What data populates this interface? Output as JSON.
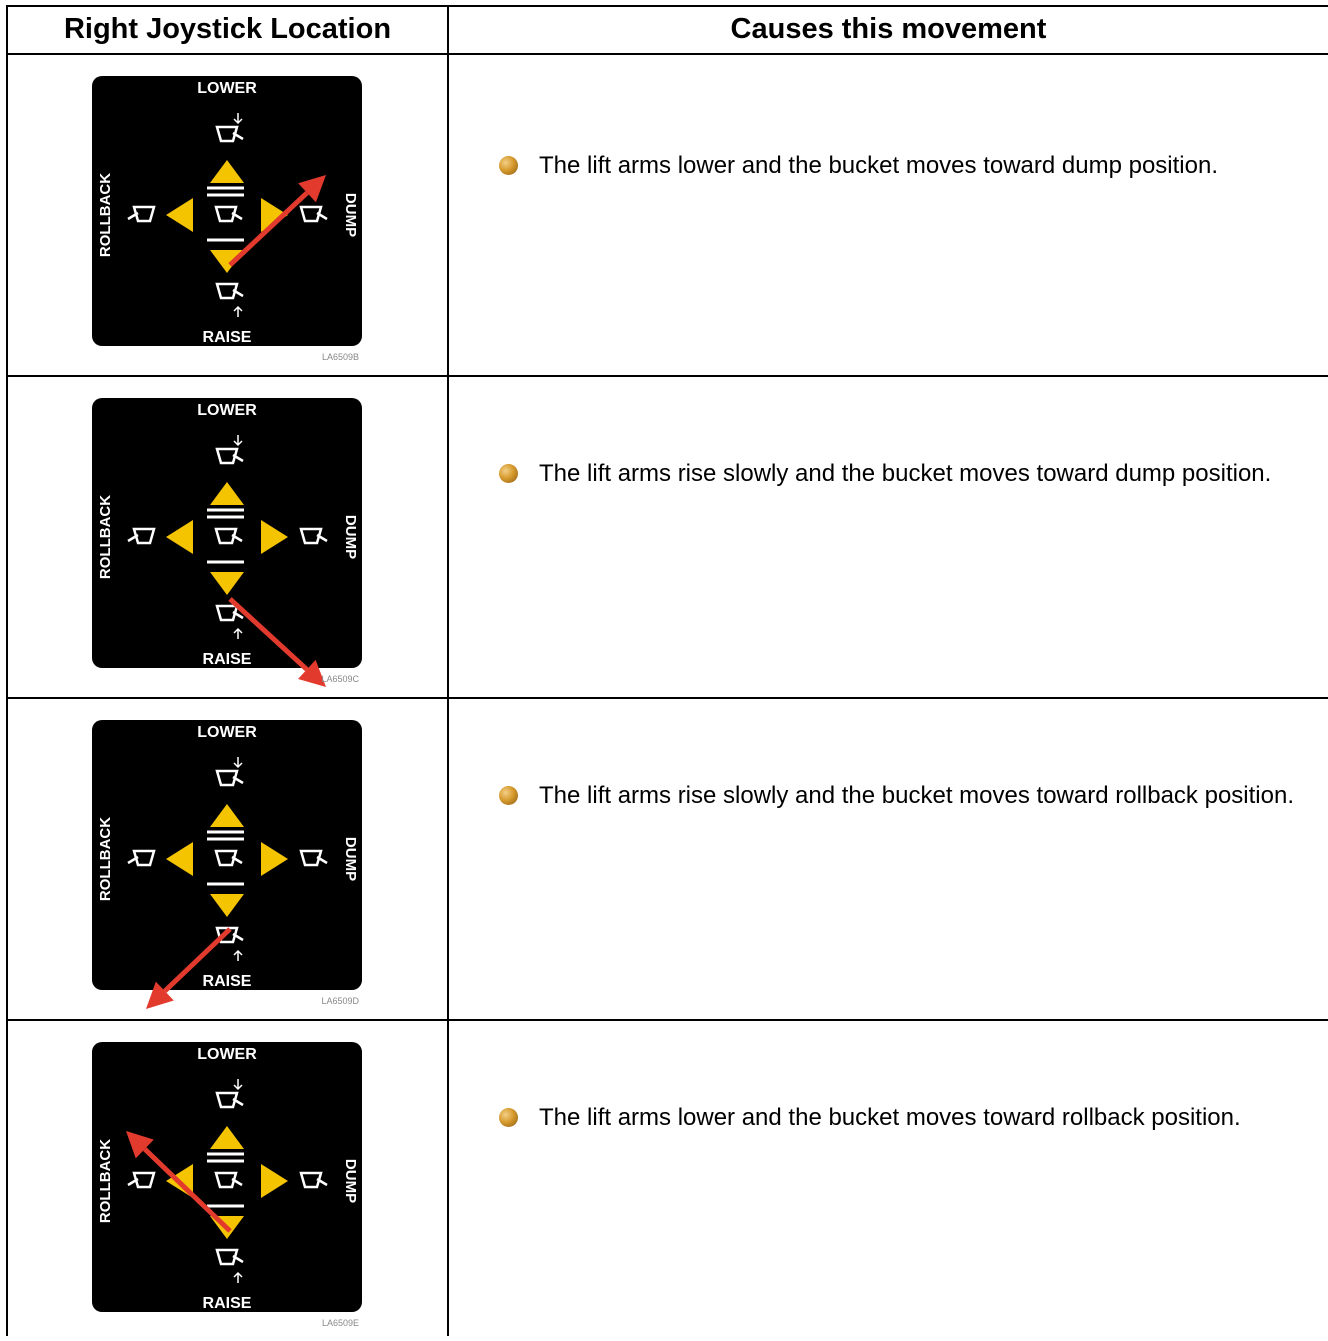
{
  "table": {
    "headers": [
      "Right Joystick Location",
      "Causes this movement"
    ],
    "label_text": {
      "lower": "LOWER",
      "raise": "RAISE",
      "rollback": "ROLLBACK",
      "dump": "DUMP"
    },
    "rows": [
      {
        "arrow_direction": "up-right",
        "image_code": "LA6509B",
        "description": "The lift arms lower and the bucket moves toward dump position."
      },
      {
        "arrow_direction": "down-right",
        "image_code": "LA6509C",
        "description": "The lift arms rise slowly and the bucket moves toward dump position."
      },
      {
        "arrow_direction": "down-left",
        "image_code": "LA6509D",
        "description": "The lift arms rise slowly and the bucket moves toward rollback position."
      },
      {
        "arrow_direction": "up-left",
        "image_code": "LA6509E",
        "description": "The lift arms lower and the bucket moves toward rollback position."
      }
    ]
  },
  "colors": {
    "panel_background": "#000000",
    "triangle_yellow": "#f5c400",
    "arrow_red": "#e23b2e",
    "bullet": "#c98b22"
  }
}
